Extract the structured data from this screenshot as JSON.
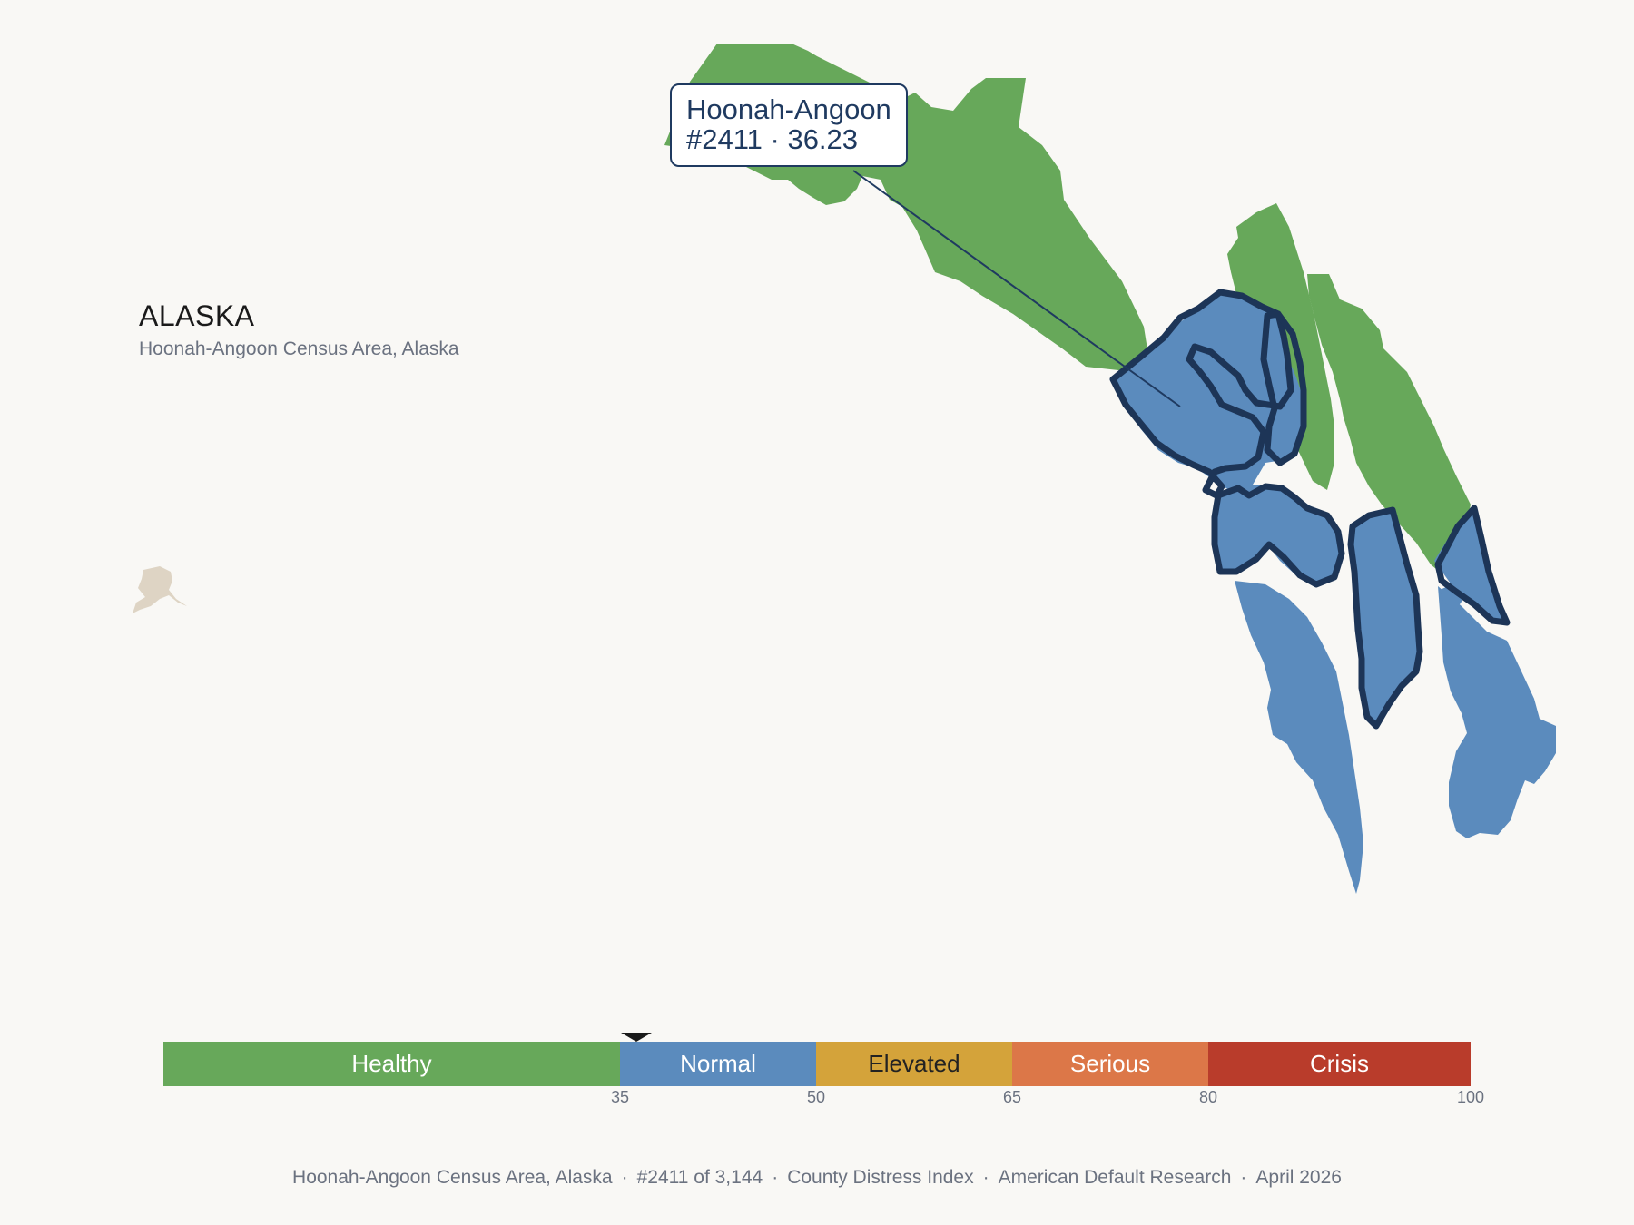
{
  "header": {
    "state": "ALASKA",
    "subtitle": "Hoonah-Angoon Census Area, Alaska"
  },
  "callout": {
    "name": "Hoonah-Angoon",
    "rank_score": "#2411 · 36.23"
  },
  "map": {
    "region_colors": {
      "healthy": "#67a85a",
      "normal": "#5b8bbd",
      "highlight_outline": "#1d3557",
      "inset": "#ded4c4"
    },
    "selected_region": "Hoonah-Angoon",
    "selected_category": "Normal"
  },
  "legend": {
    "categories": [
      {
        "label": "Healthy",
        "min": 0,
        "max": 35,
        "color": "#67a85a",
        "text_color": "#ffffff"
      },
      {
        "label": "Normal",
        "min": 35,
        "max": 50,
        "color": "#5b8bbd",
        "text_color": "#ffffff"
      },
      {
        "label": "Elevated",
        "min": 50,
        "max": 65,
        "color": "#d4a33a",
        "text_color": "#222222"
      },
      {
        "label": "Serious",
        "min": 65,
        "max": 80,
        "color": "#dc7748",
        "text_color": "#ffffff"
      },
      {
        "label": "Crisis",
        "min": 80,
        "max": 100,
        "color": "#b93c2b",
        "text_color": "#ffffff"
      }
    ],
    "ticks": [
      "35",
      "50",
      "65",
      "80",
      "100"
    ],
    "marker_value": 36.23
  },
  "footer": {
    "county": "Hoonah-Angoon Census Area, Alaska",
    "rank": "#2411 of 3,144",
    "index": "County Distress Index",
    "source": "American Default Research",
    "date": "April 2026",
    "separator": "·"
  }
}
